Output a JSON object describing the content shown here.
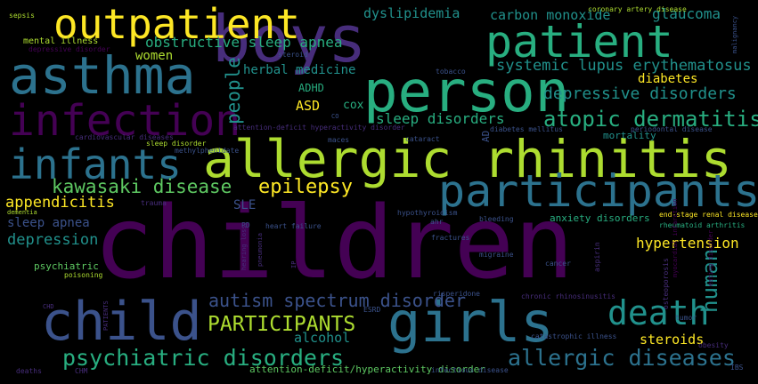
{
  "palette": {
    "background": "#000000",
    "dark_purple": "#440154",
    "indigo": "#472d7b",
    "blue": "#3b528b",
    "steel": "#2c728e",
    "teal": "#21918c",
    "green": "#28ae80",
    "lime": "#5ec962",
    "yellow_green": "#addc30",
    "yellow": "#fde725"
  },
  "words": [
    {
      "text": "children",
      "color": "#440154"
    },
    {
      "text": "allergic rhinitis",
      "color": "#addc30"
    },
    {
      "text": "boys",
      "color": "#472d7b"
    },
    {
      "text": "person",
      "color": "#28ae80"
    },
    {
      "text": "outpatient",
      "color": "#fde725"
    },
    {
      "text": "asthma",
      "color": "#2c728e"
    },
    {
      "text": "patient",
      "color": "#28ae80"
    },
    {
      "text": "infection",
      "color": "#440154"
    },
    {
      "text": "participants",
      "color": "#2c728e"
    },
    {
      "text": "girls",
      "color": "#2c728e"
    },
    {
      "text": "child",
      "color": "#3b528b"
    },
    {
      "text": "infants",
      "color": "#2c728e"
    },
    {
      "text": "death",
      "color": "#21918c"
    },
    {
      "text": "atopic dermatitis",
      "color": "#28ae80"
    },
    {
      "text": "allergic diseases",
      "color": "#2c728e"
    },
    {
      "text": "psychiatric disorders",
      "color": "#28ae80"
    },
    {
      "text": "PARTICIPANTS",
      "color": "#addc30"
    },
    {
      "text": "kawasaki disease",
      "color": "#5ec962"
    },
    {
      "text": "epilepsy",
      "color": "#fde725"
    },
    {
      "text": "autism spectrum disorder",
      "color": "#3b528b"
    },
    {
      "text": "human",
      "color": "#21918c"
    },
    {
      "text": "depressive disorders",
      "color": "#21918c"
    },
    {
      "text": "systemic lupus erythematosus",
      "color": "#21918c"
    },
    {
      "text": "sleep disorders",
      "color": "#28ae80"
    },
    {
      "text": "obstructive sleep apnea",
      "color": "#28ae80"
    },
    {
      "text": "people",
      "color": "#21918c"
    },
    {
      "text": "appendicitis",
      "color": "#fde725"
    },
    {
      "text": "depression",
      "color": "#21918c"
    },
    {
      "text": "hypertension",
      "color": "#fde725"
    },
    {
      "text": "alcohol",
      "color": "#21918c"
    },
    {
      "text": "steroids",
      "color": "#fde725"
    },
    {
      "text": "glaucoma",
      "color": "#21918c"
    },
    {
      "text": "dyslipidemia",
      "color": "#21918c"
    },
    {
      "text": "carbon monoxide",
      "color": "#21918c"
    },
    {
      "text": "herbal medicine",
      "color": "#21918c"
    },
    {
      "text": "ASD",
      "color": "#fde725"
    },
    {
      "text": "diabetes",
      "color": "#fde725"
    },
    {
      "text": "sleep apnea",
      "color": "#3b528b"
    },
    {
      "text": "women",
      "color": "#addc30"
    },
    {
      "text": "ADHD",
      "color": "#28ae80"
    },
    {
      "text": "cox",
      "color": "#28ae80"
    },
    {
      "text": "SLE",
      "color": "#3b528b"
    },
    {
      "text": "anxiety disorders",
      "color": "#28ae80"
    },
    {
      "text": "mortality",
      "color": "#21918c"
    },
    {
      "text": "psychiatric",
      "color": "#5ec962"
    },
    {
      "text": "attention-deficit/hyperactivity disorder",
      "color": "#5ec962"
    },
    {
      "text": "end-stage renal disease",
      "color": "#fde725"
    },
    {
      "text": "rheumatoid arthritis",
      "color": "#28ae80"
    },
    {
      "text": "mental illness",
      "color": "#addc30"
    },
    {
      "text": "sepsis",
      "color": "#addc30"
    },
    {
      "text": "coronary artery disease",
      "color": "#addc30"
    },
    {
      "text": "malignancy",
      "color": "#3b528b"
    },
    {
      "text": "steroid",
      "color": "#3b528b"
    },
    {
      "text": "tobacco",
      "color": "#3b528b"
    },
    {
      "text": "depressive disorder",
      "color": "#440154"
    },
    {
      "text": "attention-deficit hyperactivity disorder",
      "color": "#472d7b"
    },
    {
      "text": "CO",
      "color": "#3b528b"
    },
    {
      "text": "cardiovascular diseases",
      "color": "#472d7b"
    },
    {
      "text": "maces",
      "color": "#3b528b"
    },
    {
      "text": "cataract",
      "color": "#3b528b"
    },
    {
      "text": "AD",
      "color": "#3b528b"
    },
    {
      "text": "diabetes mellitus",
      "color": "#3b528b"
    },
    {
      "text": "periodontal disease",
      "color": "#3b528b"
    },
    {
      "text": "sleep disorder",
      "color": "#addc30"
    },
    {
      "text": "methylphenidate",
      "color": "#3b528b"
    },
    {
      "text": "trauma",
      "color": "#472d7b"
    },
    {
      "text": "dementia",
      "color": "#addc30"
    },
    {
      "text": "hypothyroidism",
      "color": "#3b528b"
    },
    {
      "text": "heart failure",
      "color": "#3b528b"
    },
    {
      "text": "ahr",
      "color": "#3b528b"
    },
    {
      "text": "PD",
      "color": "#3b528b"
    },
    {
      "text": "fractures",
      "color": "#3b528b"
    },
    {
      "text": "bleeding",
      "color": "#3b528b"
    },
    {
      "text": "pneumonia",
      "color": "#472d7b"
    },
    {
      "text": "hearing loss",
      "color": "#472d7b"
    },
    {
      "text": "IP",
      "color": "#472d7b"
    },
    {
      "text": "migraine",
      "color": "#3b528b"
    },
    {
      "text": "aspirin",
      "color": "#472d7b"
    },
    {
      "text": "osteoporosis",
      "color": "#472d7b"
    },
    {
      "text": "myocardial infarction",
      "color": "#440154"
    },
    {
      "text": "eating disorder",
      "color": "#440154"
    },
    {
      "text": "poisoning",
      "color": "#addc30"
    },
    {
      "text": "risperidone",
      "color": "#3b528b"
    },
    {
      "text": "chronic rhinosinusitis",
      "color": "#472d7b"
    },
    {
      "text": "cancer",
      "color": "#3b528b"
    },
    {
      "text": "CHD",
      "color": "#472d7b"
    },
    {
      "text": "PATIENTS",
      "color": "#472d7b"
    },
    {
      "text": "ESRD",
      "color": "#3b528b"
    },
    {
      "text": "catastrophic illness",
      "color": "#3b528b"
    },
    {
      "text": "tumor",
      "color": "#3b528b"
    },
    {
      "text": "obesity",
      "color": "#472d7b"
    },
    {
      "text": "IBS",
      "color": "#3b528b"
    },
    {
      "text": "deaths",
      "color": "#472d7b"
    },
    {
      "text": "CHM",
      "color": "#472d7b"
    },
    {
      "text": "infectious disease",
      "color": "#3b528b"
    }
  ]
}
